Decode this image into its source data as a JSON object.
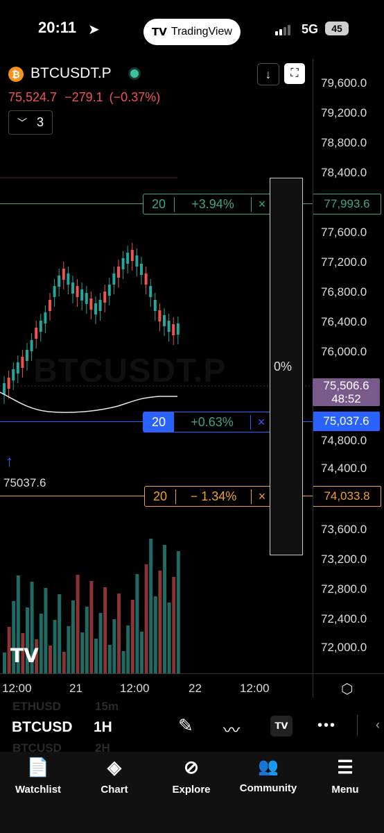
{
  "status": {
    "time": "20:11",
    "app_pill": "TradingView",
    "network": "5G",
    "battery": "45"
  },
  "header": {
    "symbol": "BTCUSDT.P",
    "price": "75,524.7",
    "change": "−279.1",
    "change_pct": "(−0.37%)",
    "indicator_count": "3"
  },
  "price_axis": [
    "79,600.0",
    "79,200.0",
    "78,800.0",
    "78,400.0",
    "77,600.0",
    "77,200.0",
    "76,800.0",
    "76,400.0",
    "76,000.0",
    "74,800.0",
    "74,400.0",
    "73,600.0",
    "73,200.0",
    "72,800.0",
    "72,400.0",
    "72,000.0"
  ],
  "orders": {
    "take_profit": {
      "qty": "20",
      "pct": "+3.94%",
      "close": "×",
      "price": "77,993.6"
    },
    "entry": {
      "qty": "20",
      "pct": "+0.63%",
      "close": "×",
      "price": "75,037.6"
    },
    "stop_loss": {
      "qty": "20",
      "pct": "− 1.34%",
      "close": "×",
      "price": "74,033.8"
    }
  },
  "current": {
    "price": "75,506.6",
    "countdown": "48:52"
  },
  "position_pct": "0%",
  "fill_marker_price": "75037.6",
  "x_axis": [
    "12:00",
    "21",
    "12:00",
    "22",
    "12:00"
  ],
  "watermark": "BTCUSDT.P",
  "bottom_bar": {
    "symbol": "BTCUSD",
    "timeframe": "1H",
    "ghost_top_symbol": "ETHUSD",
    "ghost_top_tf": "15m",
    "ghost_bottom_symbol": "BTCUSD",
    "ghost_bottom_tf": "2H"
  },
  "nav": [
    "Watchlist",
    "Chart",
    "Explore",
    "Community",
    "Menu"
  ],
  "colors": {
    "up": "#26a69a",
    "down": "#ef5350",
    "tp": "#3fa388",
    "entry": "#2962ff",
    "sl": "#f0a030"
  }
}
